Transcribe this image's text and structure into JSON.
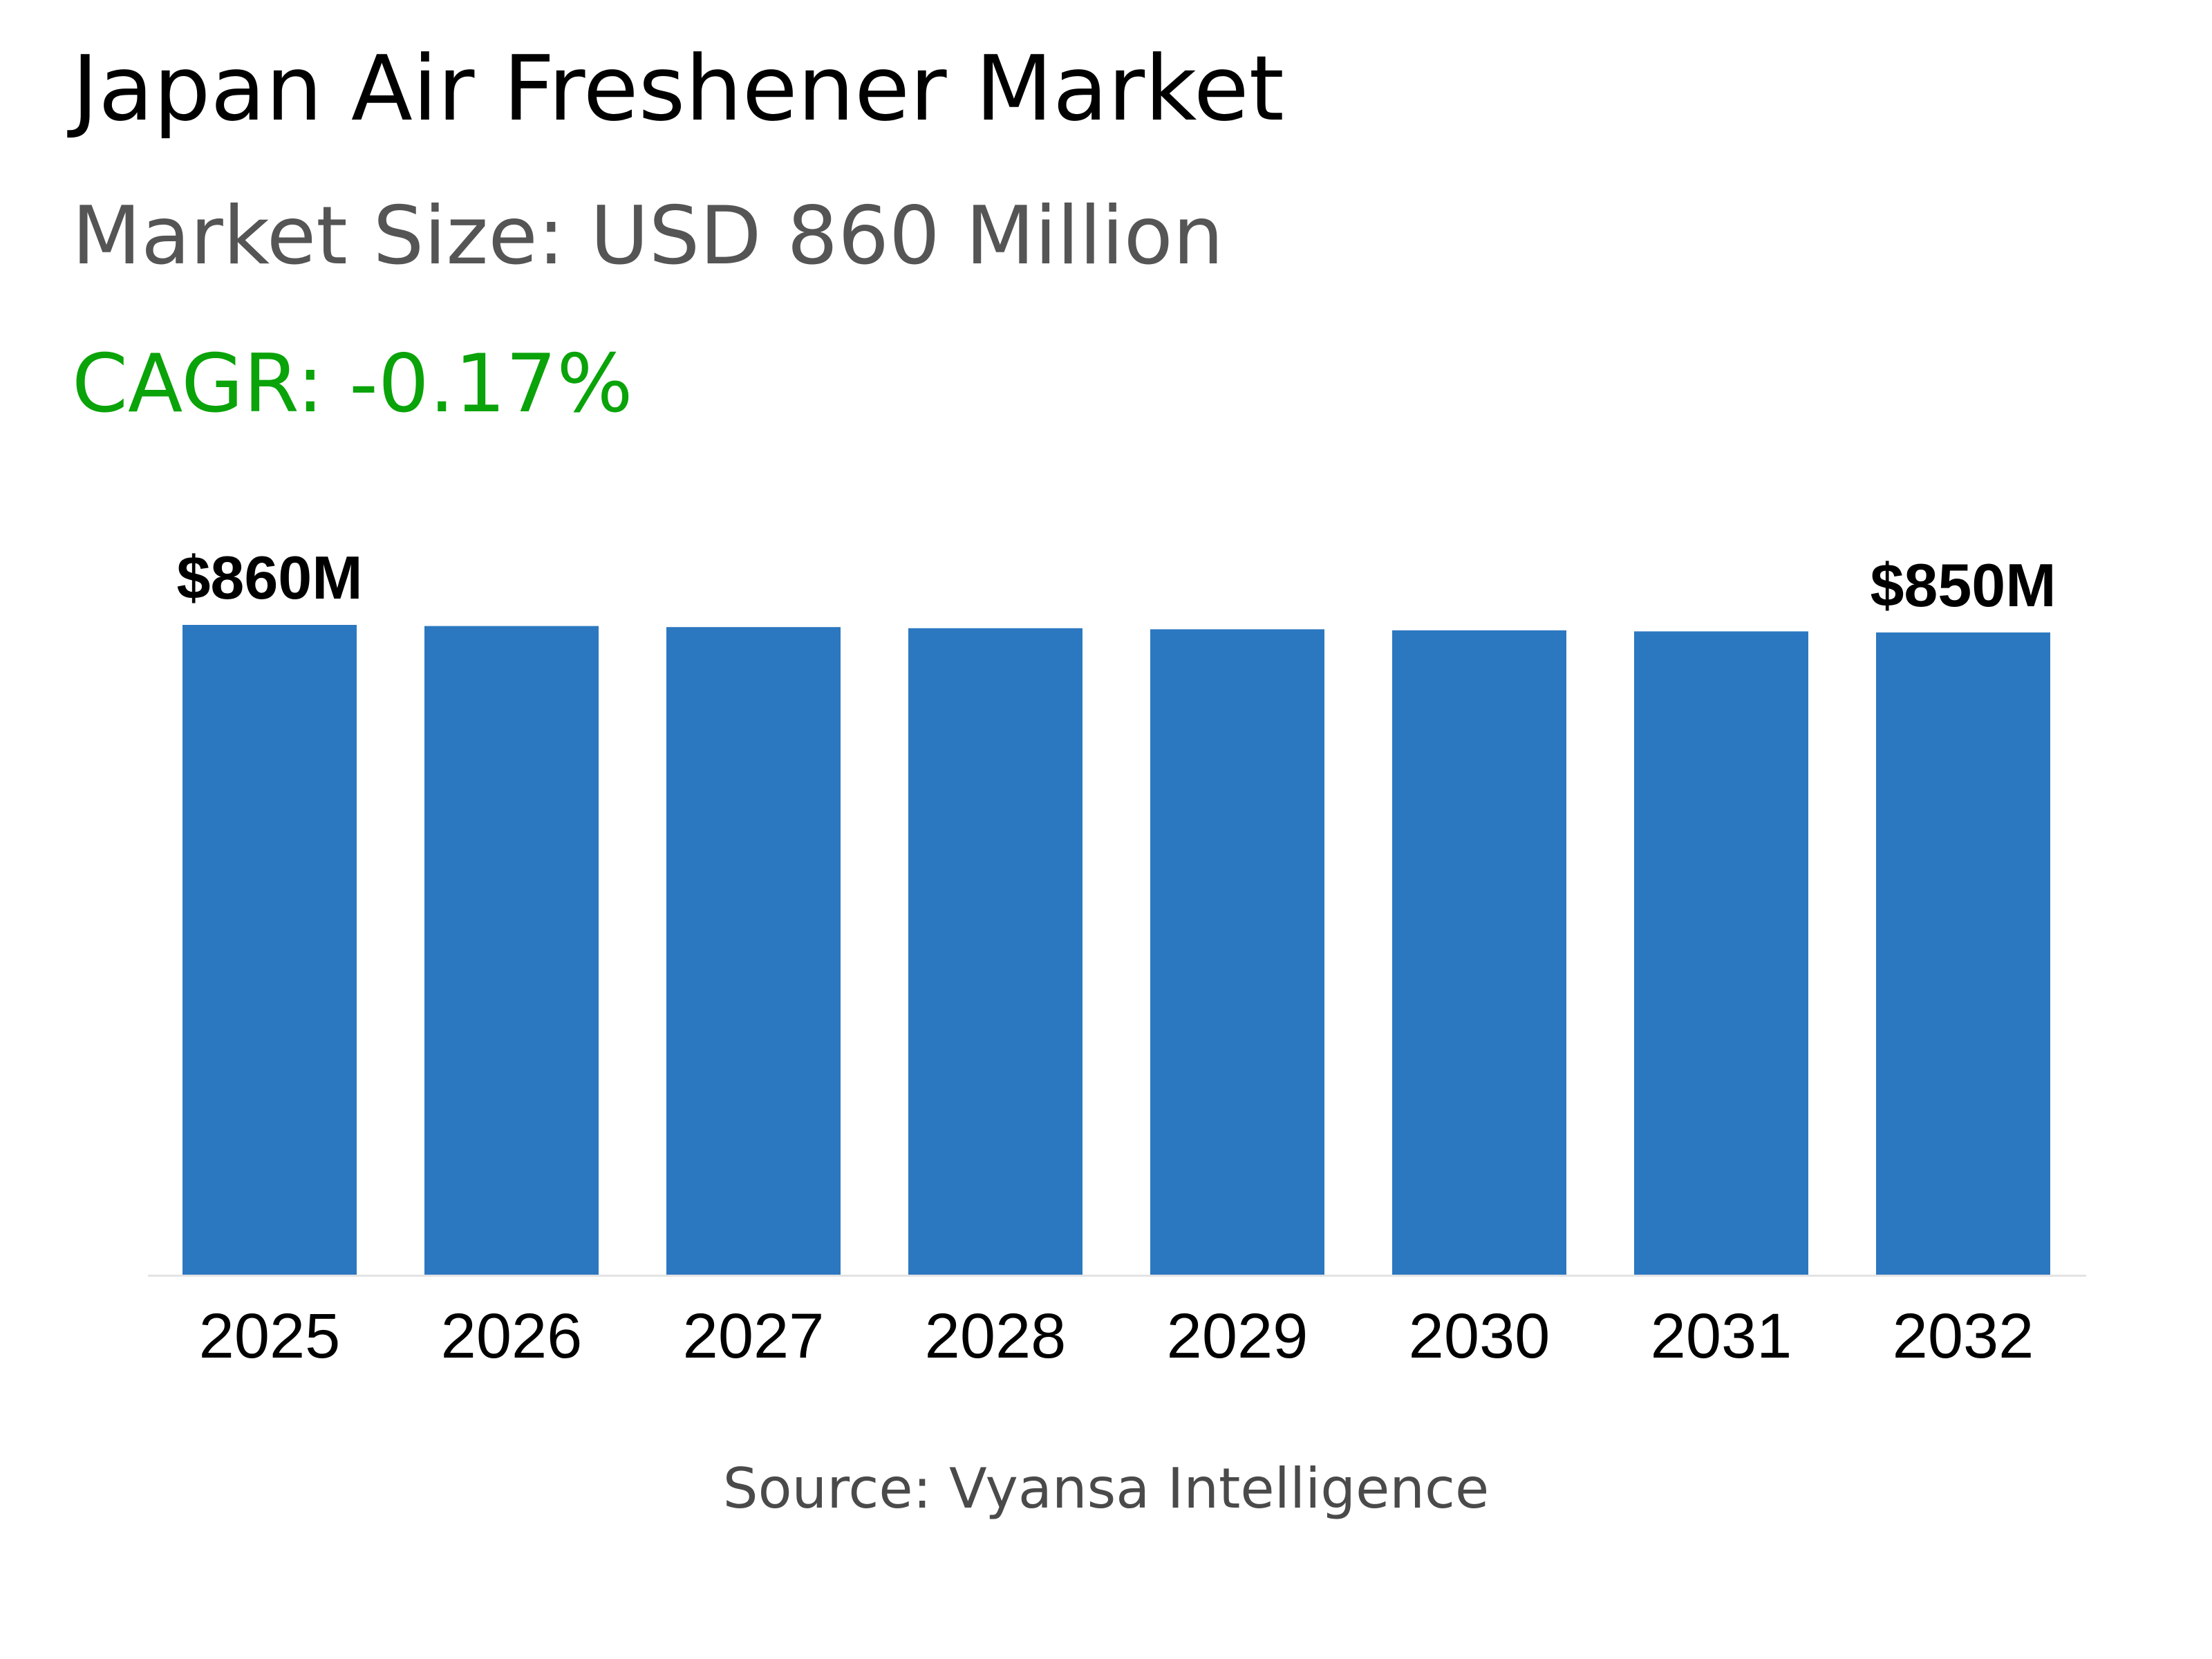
{
  "header": {
    "title": "Japan Air Freshener Market",
    "market_size": "Market Size: USD 860 Million",
    "cagr": "CAGR: -0.17%"
  },
  "footer": {
    "source": "Source: Vyansa Intelligence"
  },
  "colors": {
    "bar": "#2c78c0",
    "cagr": "#0aa30a",
    "subtitle": "#555555"
  },
  "chart_data": {
    "type": "bar",
    "title": "",
    "xlabel": "",
    "ylabel": "",
    "categories": [
      "2025",
      "2026",
      "2027",
      "2028",
      "2029",
      "2030",
      "2031",
      "2032"
    ],
    "values": [
      860,
      858.5,
      857.1,
      855.6,
      854.2,
      852.8,
      851.4,
      850
    ],
    "unit": "USD Million",
    "ylim": [
      0,
      860
    ],
    "grid": false,
    "legend": "none",
    "data_labels": [
      {
        "index": 0,
        "text": "$860M"
      },
      {
        "index": 7,
        "text": "$850M"
      }
    ]
  }
}
